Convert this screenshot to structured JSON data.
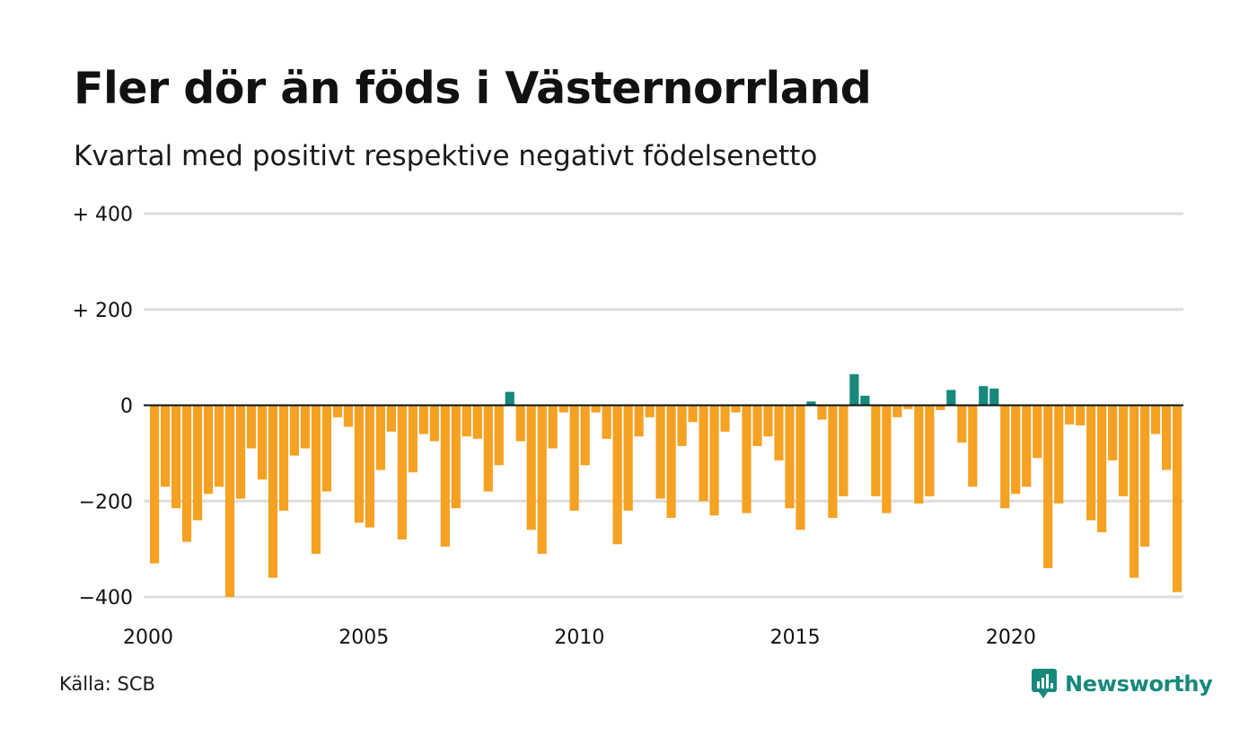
{
  "header": {
    "title": "Fler dör än föds i Västernorrland",
    "subtitle": "Kvartal med positivt respektive negativt födelsenetto"
  },
  "footer": {
    "source": "Källa: SCB",
    "brand": "Newsworthy",
    "brand_color": "#16897b",
    "brand_icon": "newsworthy-logo-icon"
  },
  "colors": {
    "positive": "#16897b",
    "negative": "#f5a122",
    "grid": "#dddddd",
    "zero_line": "#111111"
  },
  "chart_data": {
    "type": "bar",
    "title": "Fler dör än föds i Västernorrland",
    "subtitle": "Kvartal med positivt respektive negativt födelsenetto",
    "xlabel": "",
    "ylabel": "",
    "ylim": [
      -400,
      400
    ],
    "y_ticks": [
      {
        "value": 400,
        "label": "+ 400"
      },
      {
        "value": 200,
        "label": "+ 200"
      },
      {
        "value": 0,
        "label": "0"
      },
      {
        "value": -200,
        "label": "−200"
      },
      {
        "value": -400,
        "label": "−400"
      }
    ],
    "x_ticks": [
      {
        "year": 2000,
        "label": "2000"
      },
      {
        "year": 2005,
        "label": "2005"
      },
      {
        "year": 2010,
        "label": "2010"
      },
      {
        "year": 2015,
        "label": "2015"
      },
      {
        "year": 2020,
        "label": "2020"
      }
    ],
    "grid": true,
    "legend": "none",
    "start_year": 2000,
    "end_year": 2024,
    "frequency": "quarterly",
    "values": [
      -330,
      -170,
      -215,
      -285,
      -240,
      -185,
      -170,
      -400,
      -195,
      -90,
      -155,
      -360,
      -220,
      -105,
      -90,
      -310,
      -180,
      -25,
      -45,
      -245,
      -255,
      -135,
      -55,
      -280,
      -140,
      -60,
      -75,
      -295,
      -215,
      -65,
      -70,
      -180,
      -125,
      28,
      -75,
      -260,
      -310,
      -90,
      -15,
      -220,
      -125,
      -15,
      -70,
      -290,
      -220,
      -65,
      -25,
      -195,
      -235,
      -85,
      -35,
      -200,
      -230,
      -55,
      -15,
      -225,
      -85,
      -65,
      -115,
      -215,
      -260,
      8,
      -30,
      -235,
      -190,
      65,
      20,
      -190,
      -225,
      -25,
      -8,
      -205,
      -190,
      -10,
      32,
      -78,
      -170,
      40,
      35,
      -215,
      -185,
      -170,
      -110,
      -340,
      -205,
      -40,
      -42,
      -240,
      -265,
      -115,
      -190,
      -360,
      -295,
      -60,
      -135,
      -390
    ]
  }
}
